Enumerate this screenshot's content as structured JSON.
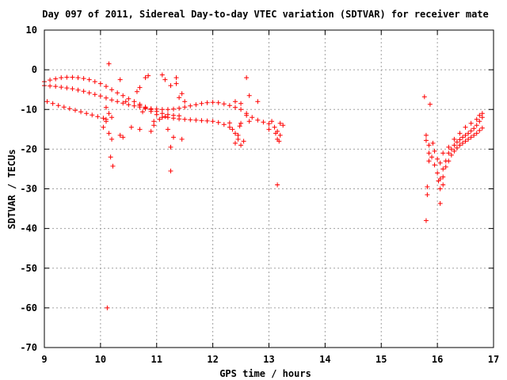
{
  "chart_data": {
    "type": "scatter",
    "title": "Day 097 of 2011, Sidereal Day-to-day VTEC variation (SDTVAR) for receiver mate",
    "xlabel": "GPS time / hours",
    "ylabel": "SDTVAR / TECUs",
    "xlim": [
      9,
      17
    ],
    "ylim": [
      -70,
      10
    ],
    "xticks": [
      9,
      10,
      11,
      12,
      13,
      14,
      15,
      16,
      17
    ],
    "yticks": [
      10,
      0,
      -10,
      -20,
      -30,
      -40,
      -50,
      -60,
      -70
    ],
    "grid": true,
    "legend": "none",
    "marker": "plus",
    "color": "#ff0000",
    "series": [
      {
        "values": [
          [
            9.0,
            -3
          ],
          [
            9.1,
            -2.6
          ],
          [
            9.2,
            -2.3
          ],
          [
            9.3,
            -2
          ],
          [
            9.4,
            -1.9
          ],
          [
            9.5,
            -1.9
          ],
          [
            9.6,
            -2
          ],
          [
            9.7,
            -2.2
          ],
          [
            9.8,
            -2.5
          ],
          [
            9.9,
            -3
          ],
          [
            10.0,
            -3.5
          ],
          [
            10.1,
            -4.2
          ],
          [
            10.2,
            -5
          ],
          [
            10.3,
            -5.8
          ],
          [
            10.4,
            -6.5
          ],
          [
            10.5,
            -7.3
          ],
          [
            10.6,
            -8
          ],
          [
            10.7,
            -8.7
          ],
          [
            10.8,
            -9.4
          ],
          [
            10.9,
            -10
          ],
          [
            11.0,
            -10.5
          ],
          [
            11.1,
            -11
          ],
          [
            11.2,
            -11.3
          ],
          [
            11.3,
            -11.5
          ],
          [
            11.4,
            -11.6
          ],
          [
            9.0,
            -4
          ],
          [
            9.1,
            -4.1
          ],
          [
            9.2,
            -4.2
          ],
          [
            9.3,
            -4.4
          ],
          [
            9.4,
            -4.6
          ],
          [
            9.5,
            -4.8
          ],
          [
            9.6,
            -5.1
          ],
          [
            9.7,
            -5.4
          ],
          [
            9.8,
            -5.8
          ],
          [
            9.9,
            -6.2
          ],
          [
            10.0,
            -6.6
          ],
          [
            10.1,
            -7.1
          ],
          [
            10.2,
            -7.6
          ],
          [
            10.3,
            -8
          ],
          [
            10.4,
            -8.4
          ],
          [
            10.5,
            -8.8
          ],
          [
            10.6,
            -9.1
          ],
          [
            10.7,
            -9.4
          ],
          [
            10.8,
            -9.6
          ],
          [
            10.9,
            -9.8
          ],
          [
            11.0,
            -9.9
          ],
          [
            11.1,
            -10
          ],
          [
            11.2,
            -10
          ],
          [
            11.3,
            -9.9
          ],
          [
            11.4,
            -9.7
          ],
          [
            11.5,
            -9.4
          ],
          [
            11.6,
            -9.1
          ],
          [
            11.7,
            -8.8
          ],
          [
            11.8,
            -8.5
          ],
          [
            11.9,
            -8.3
          ],
          [
            12.0,
            -8.2
          ],
          [
            12.1,
            -8.3
          ],
          [
            12.2,
            -8.6
          ],
          [
            12.3,
            -9
          ],
          [
            12.4,
            -9.5
          ],
          [
            12.5,
            -10
          ],
          [
            12.6,
            -11
          ],
          [
            12.7,
            -12
          ],
          [
            12.8,
            -12.7
          ],
          [
            12.9,
            -13.2
          ],
          [
            13.0,
            -13.6
          ],
          [
            9.05,
            -8
          ],
          [
            9.15,
            -8.5
          ],
          [
            9.25,
            -9
          ],
          [
            9.35,
            -9.4
          ],
          [
            9.45,
            -9.8
          ],
          [
            9.55,
            -10.2
          ],
          [
            9.65,
            -10.6
          ],
          [
            9.75,
            -11
          ],
          [
            9.85,
            -11.4
          ],
          [
            9.95,
            -11.8
          ],
          [
            10.05,
            -12.2
          ],
          [
            10.1,
            -12.5
          ],
          [
            11.2,
            -12
          ],
          [
            11.3,
            -12.2
          ],
          [
            11.4,
            -12.4
          ],
          [
            11.5,
            -12.5
          ],
          [
            11.6,
            -12.6
          ],
          [
            11.7,
            -12.7
          ],
          [
            11.8,
            -12.8
          ],
          [
            11.9,
            -12.9
          ],
          [
            12.0,
            -13
          ],
          [
            12.1,
            -13.3
          ],
          [
            12.2,
            -13.8
          ],
          [
            12.3,
            -14.5
          ],
          [
            12.4,
            -16
          ],
          [
            12.45,
            -17.5
          ],
          [
            12.5,
            -19
          ],
          [
            12.6,
            -11.5
          ],
          [
            12.65,
            -13
          ],
          [
            12.5,
            -13.5
          ],
          [
            12.45,
            -16.5
          ],
          [
            12.35,
            -15
          ],
          [
            12.55,
            -18
          ],
          [
            12.4,
            -18.5
          ],
          [
            12.3,
            -13.4
          ],
          [
            12.48,
            -14.2
          ],
          [
            10.7,
            -9
          ],
          [
            10.8,
            -9.8
          ],
          [
            10.9,
            -10.5
          ],
          [
            11.0,
            -11.3
          ],
          [
            11.1,
            -12
          ],
          [
            11.15,
            -11.8
          ],
          [
            11.05,
            -12.5
          ],
          [
            10.75,
            -10.6
          ],
          [
            10.95,
            -13
          ],
          [
            13.05,
            -13
          ],
          [
            13.1,
            -14.5
          ],
          [
            13.15,
            -15.5
          ],
          [
            13.2,
            -16.5
          ],
          [
            13.25,
            -14
          ],
          [
            13.0,
            -15
          ],
          [
            13.12,
            -16
          ],
          [
            13.2,
            -13.5
          ],
          [
            13.15,
            -17.5
          ],
          [
            13.18,
            -18
          ],
          [
            10.15,
            1.5
          ],
          [
            10.35,
            -2.5
          ],
          [
            10.8,
            -2
          ],
          [
            10.85,
            -1.5
          ],
          [
            11.1,
            -1.3
          ],
          [
            11.15,
            -2.5
          ],
          [
            11.25,
            -4
          ],
          [
            11.35,
            -2
          ],
          [
            11.45,
            -6
          ],
          [
            11.5,
            -8
          ],
          [
            11.4,
            -7
          ],
          [
            11.35,
            -3.5
          ],
          [
            12.6,
            -2
          ],
          [
            12.65,
            -6.5
          ],
          [
            12.8,
            -8
          ],
          [
            12.5,
            -8.5
          ],
          [
            12.4,
            -8
          ],
          [
            11.3,
            -17
          ],
          [
            11.45,
            -17.5
          ],
          [
            11.2,
            -15
          ],
          [
            10.35,
            -16.5
          ],
          [
            10.4,
            -17
          ],
          [
            10.55,
            -14.5
          ],
          [
            10.7,
            -15
          ],
          [
            10.9,
            -15.5
          ],
          [
            10.95,
            -14
          ],
          [
            10.65,
            -5.5
          ],
          [
            10.7,
            -4.5
          ],
          [
            10.45,
            -8
          ],
          [
            10.1,
            -9.5
          ],
          [
            10.15,
            -11
          ],
          [
            10.2,
            -12
          ],
          [
            10.1,
            -13
          ],
          [
            10.05,
            -14.5
          ],
          [
            10.15,
            -16
          ],
          [
            10.2,
            -17.5
          ],
          [
            10.18,
            -22
          ],
          [
            10.22,
            -24.3
          ],
          [
            11.25,
            -19.5
          ],
          [
            11.25,
            -25.5
          ],
          [
            13.15,
            -29
          ],
          [
            10.12,
            -60
          ]
        ]
      },
      {
        "values": [
          [
            16.05,
            -30
          ],
          [
            16.1,
            -27
          ],
          [
            16.15,
            -24.5
          ],
          [
            16.2,
            -23
          ],
          [
            16.25,
            -21.5
          ],
          [
            16.3,
            -20.5
          ],
          [
            16.35,
            -19.7
          ],
          [
            16.4,
            -19
          ],
          [
            16.45,
            -18.5
          ],
          [
            16.5,
            -18
          ],
          [
            16.55,
            -17.5
          ],
          [
            16.6,
            -17
          ],
          [
            16.65,
            -16.5
          ],
          [
            16.7,
            -16
          ],
          [
            16.75,
            -15.3
          ],
          [
            16.8,
            -14.7
          ],
          [
            16.1,
            -25
          ],
          [
            16.15,
            -23
          ],
          [
            16.2,
            -21
          ],
          [
            16.25,
            -20
          ],
          [
            16.3,
            -19
          ],
          [
            16.35,
            -18.2
          ],
          [
            16.4,
            -17.6
          ],
          [
            16.45,
            -17
          ],
          [
            16.5,
            -16.5
          ],
          [
            16.55,
            -16
          ],
          [
            16.6,
            -15.4
          ],
          [
            16.65,
            -14.8
          ],
          [
            16.7,
            -14
          ],
          [
            16.75,
            -13
          ],
          [
            16.8,
            -12
          ],
          [
            16.8,
            -11
          ],
          [
            16.05,
            -27.5
          ],
          [
            16.1,
            -29
          ],
          [
            16.0,
            -26
          ],
          [
            15.95,
            -24
          ],
          [
            15.9,
            -22
          ],
          [
            15.85,
            -21
          ],
          [
            15.85,
            -23
          ],
          [
            15.95,
            -20.5
          ],
          [
            16.0,
            -22.5
          ],
          [
            16.02,
            -28
          ],
          [
            16.05,
            -23.5
          ],
          [
            16.1,
            -21
          ],
          [
            16.2,
            -19.5
          ],
          [
            16.3,
            -17.5
          ],
          [
            16.4,
            -16
          ],
          [
            16.5,
            -14.5
          ],
          [
            16.6,
            -13.5
          ],
          [
            16.7,
            -12.5
          ],
          [
            16.75,
            -11.5
          ],
          [
            15.77,
            -6.8
          ],
          [
            15.87,
            -8.7
          ],
          [
            15.8,
            -16.5
          ],
          [
            15.8,
            -17.8
          ],
          [
            15.85,
            -19
          ],
          [
            15.82,
            -29.5
          ],
          [
            15.82,
            -31.5
          ],
          [
            15.8,
            -38
          ],
          [
            16.05,
            -33.7
          ],
          [
            15.92,
            -18.5
          ]
        ]
      }
    ]
  }
}
